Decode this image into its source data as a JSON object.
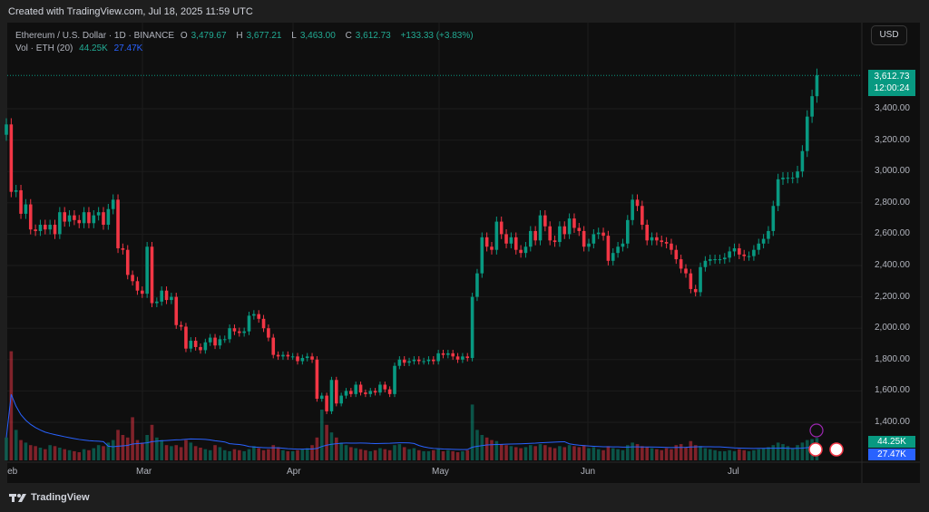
{
  "header": {
    "created": "Created with TradingView.com, Jul 18, 2025 11:59 UTC"
  },
  "legend": {
    "symbol": "Ethereum / U.S. Dollar · 1D · BINANCE",
    "o_label": "O",
    "o": "3,479.67",
    "h_label": "H",
    "h": "3,677.21",
    "l_label": "L",
    "l": "3,463.00",
    "c_label": "C",
    "c": "3,612.73",
    "change": "+133.33 (+3.83%)",
    "vol_label": "Vol · ETH (20)",
    "vol": "44.25K",
    "vol_ma": "27.47K"
  },
  "currency_button": "USD",
  "price_axis": [
    "3,400.00",
    "3,200.00",
    "3,000.00",
    "2,800.00",
    "2,600.00",
    "2,400.00",
    "2,200.00",
    "2,000.00",
    "1,800.00",
    "1,600.00",
    "1,400.00"
  ],
  "last_price": {
    "price": "3,612.73",
    "countdown": "12:00:24"
  },
  "volume_labels": {
    "vol": "44.25K",
    "ma": "27.47K"
  },
  "date_axis": [
    "Feb",
    "Mar",
    "Apr",
    "May",
    "Jun",
    "Jul"
  ],
  "footer": {
    "brand": "TradingView"
  },
  "colors": {
    "up": "#089981",
    "down": "#f23645",
    "ma": "#2962ff"
  },
  "chart_data": {
    "type": "candlestick",
    "start": "2025-02-01",
    "end": "2025-07-18",
    "closes": [
      3300,
      2870,
      2880,
      2730,
      2790,
      2630,
      2620,
      2660,
      2630,
      2660,
      2600,
      2740,
      2680,
      2720,
      2690,
      2670,
      2740,
      2670,
      2720,
      2740,
      2660,
      2760,
      2820,
      2510,
      2500,
      2340,
      2300,
      2240,
      2220,
      2520,
      2160,
      2170,
      2240,
      2180,
      2200,
      2020,
      2010,
      1870,
      1920,
      1880,
      1860,
      1910,
      1940,
      1890,
      1930,
      1930,
      2000,
      1980,
      1970,
      1980,
      2080,
      2090,
      2060,
      2000,
      1940,
      1830,
      1820,
      1830,
      1820,
      1820,
      1790,
      1810,
      1820,
      1800,
      1550,
      1570,
      1470,
      1670,
      1520,
      1570,
      1600,
      1580,
      1640,
      1590,
      1580,
      1600,
      1590,
      1640,
      1610,
      1580,
      1760,
      1800,
      1780,
      1790,
      1800,
      1790,
      1790,
      1800,
      1790,
      1840,
      1830,
      1840,
      1820,
      1800,
      1820,
      1810,
      2200,
      2350,
      2580,
      2520,
      2500,
      2680,
      2600,
      2540,
      2580,
      2500,
      2480,
      2520,
      2620,
      2560,
      2720,
      2650,
      2560,
      2550,
      2650,
      2600,
      2700,
      2640,
      2620,
      2520,
      2540,
      2600,
      2610,
      2590,
      2430,
      2480,
      2520,
      2540,
      2690,
      2820,
      2780,
      2660,
      2560,
      2580,
      2560,
      2550,
      2540,
      2500,
      2440,
      2380,
      2350,
      2250,
      2230,
      2390,
      2430,
      2440,
      2440,
      2440,
      2450,
      2490,
      2510,
      2470,
      2460,
      2460,
      2500,
      2540,
      2570,
      2620,
      2780,
      2950,
      2960,
      2960,
      2960,
      3000,
      3130,
      3350,
      3480,
      3612.73
    ],
    "volumes_k": [
      45,
      215,
      60,
      40,
      35,
      30,
      28,
      25,
      22,
      30,
      28,
      25,
      22,
      20,
      18,
      16,
      22,
      20,
      24,
      30,
      28,
      35,
      40,
      60,
      50,
      45,
      85,
      40,
      35,
      50,
      70,
      45,
      40,
      30,
      28,
      30,
      26,
      40,
      35,
      28,
      25,
      22,
      20,
      30,
      26,
      20,
      18,
      22,
      20,
      18,
      22,
      28,
      24,
      20,
      22,
      30,
      26,
      20,
      18,
      18,
      20,
      22,
      24,
      30,
      45,
      100,
      70,
      55,
      45,
      35,
      30,
      26,
      24,
      22,
      20,
      18,
      20,
      24,
      22,
      20,
      30,
      32,
      26,
      22,
      24,
      20,
      18,
      18,
      20,
      22,
      18,
      20,
      18,
      16,
      18,
      20,
      110,
      60,
      50,
      45,
      40,
      38,
      32,
      30,
      28,
      26,
      24,
      26,
      30,
      28,
      32,
      30,
      26,
      24,
      28,
      26,
      30,
      28,
      26,
      30,
      24,
      26,
      22,
      20,
      28,
      24,
      22,
      20,
      30,
      35,
      32,
      28,
      26,
      24,
      22,
      20,
      24,
      22,
      30,
      32,
      26,
      38,
      30,
      28,
      24,
      22,
      20,
      18,
      18,
      20,
      18,
      22,
      20,
      18,
      20,
      22,
      24,
      26,
      30,
      35,
      32,
      28,
      24,
      30,
      35,
      40,
      42,
      44.25
    ],
    "volume_ma_k": 27.47,
    "ylim": [
      1300,
      3700
    ]
  }
}
